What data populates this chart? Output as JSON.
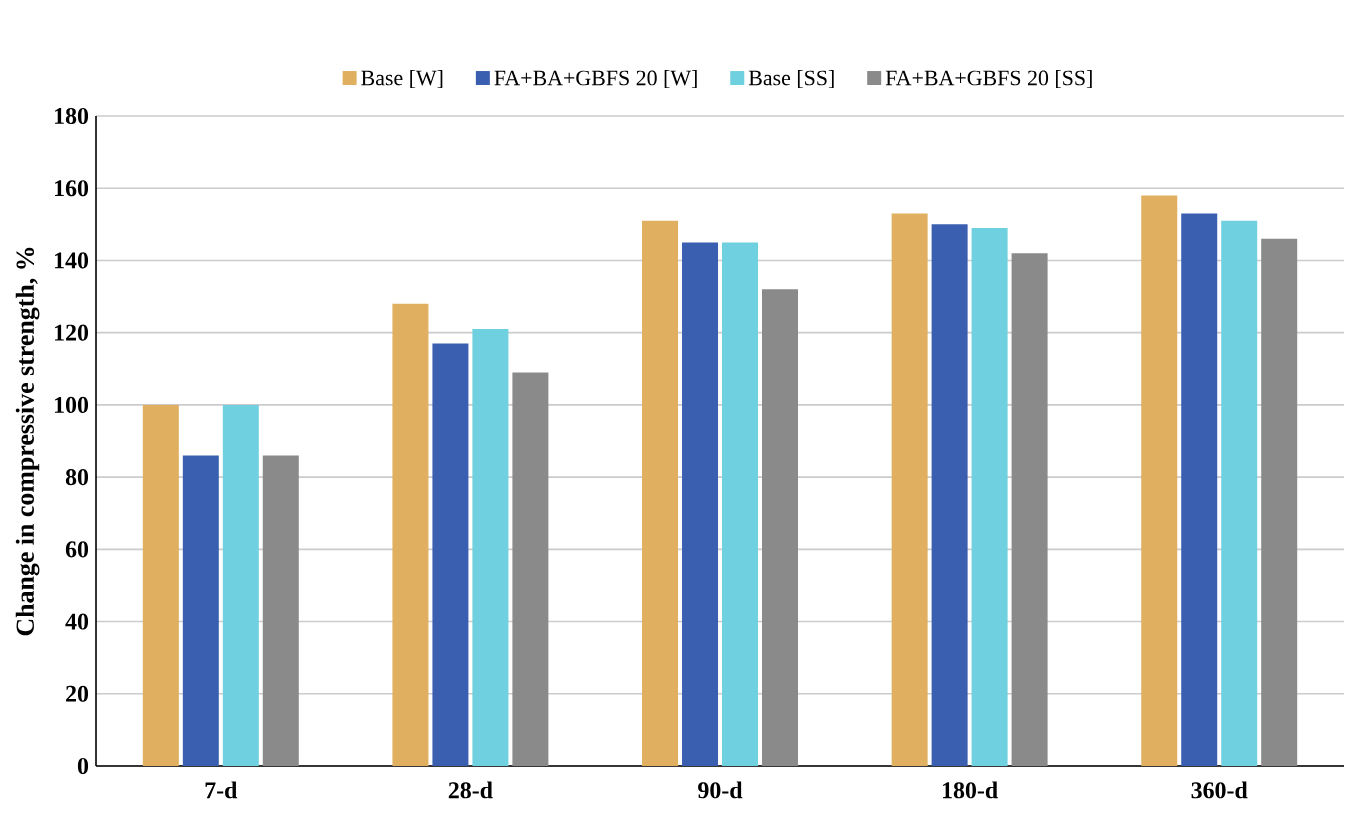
{
  "chart_data": {
    "type": "bar",
    "ylabel": "Change in compressive strength, %",
    "categories": [
      "7-d",
      "28-d",
      "90-d",
      "180-d",
      "360-d"
    ],
    "series": [
      {
        "name": "Base [W]",
        "color": "#e0b060",
        "values": [
          100,
          128,
          151,
          153,
          158
        ]
      },
      {
        "name": "FA+BA+GBFS 20 [W]",
        "color": "#3a5fb0",
        "values": [
          86,
          117,
          145,
          150,
          153
        ]
      },
      {
        "name": "Base [SS]",
        "color": "#6fd0e0",
        "values": [
          100,
          121,
          145,
          149,
          151
        ]
      },
      {
        "name": "FA+BA+GBFS 20 [SS]",
        "color": "#8a8a8a",
        "values": [
          86,
          109,
          132,
          142,
          146
        ]
      }
    ],
    "ylim": [
      0,
      180
    ],
    "yticks": [
      0,
      20,
      40,
      60,
      80,
      100,
      120,
      140,
      160,
      180
    ],
    "grid": "y",
    "legend": "top"
  }
}
